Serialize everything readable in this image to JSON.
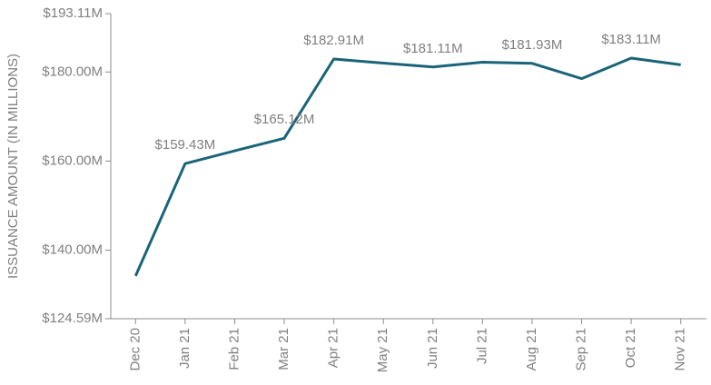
{
  "chart_data": {
    "type": "line",
    "y_label": "ISSUANCE AMOUNT (IN MILLIONS)",
    "categories": [
      "Dec 20",
      "Jan 21",
      "Feb 21",
      "Mar 21",
      "Apr 21",
      "May 21",
      "Jun 21",
      "Jul 21",
      "Aug 21",
      "Sep 21",
      "Oct 21",
      "Nov 21"
    ],
    "series": [
      {
        "name": "Issuance amount",
        "color": "#1a6479",
        "values": [
          134.2,
          159.43,
          162.3,
          165.12,
          182.91,
          182.0,
          181.11,
          182.2,
          181.93,
          178.5,
          183.11,
          181.6
        ],
        "value_labels": [
          null,
          "$159.43M",
          null,
          "$165.12M",
          "$182.91M",
          null,
          "$181.11M",
          null,
          "$181.93M",
          null,
          "$183.11M",
          null
        ]
      }
    ],
    "ylim": [
      124.59,
      193.11
    ],
    "yticks": [
      {
        "value": 124.59,
        "label": "$124.59M"
      },
      {
        "value": 140,
        "label": "$140.00M"
      },
      {
        "value": 160,
        "label": "$160.00M"
      },
      {
        "value": 180,
        "label": "$180.00M"
      },
      {
        "value": 193.11,
        "label": "$193.11M"
      }
    ]
  }
}
